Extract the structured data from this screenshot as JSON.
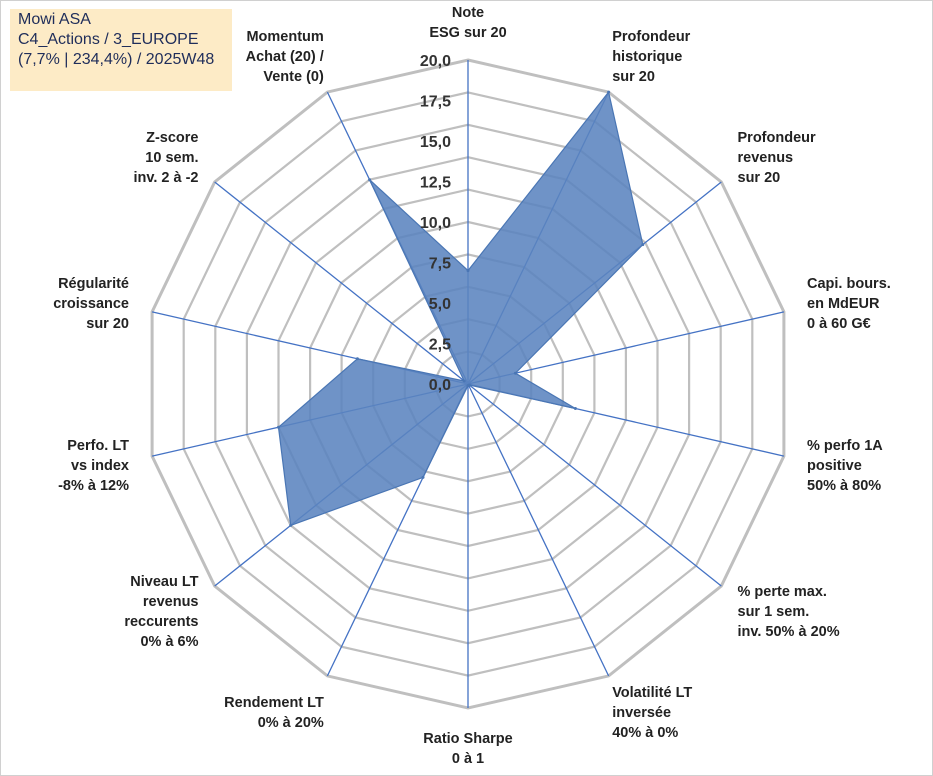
{
  "info": {
    "line1": "Mowi ASA",
    "line2": "C4_Actions / 3_EUROPE",
    "line3": "(7,7% | 234,4%) / 2025W48"
  },
  "chart_data": {
    "type": "radar",
    "rmin": 0,
    "rmax": 20,
    "ticks": [
      "0,0",
      "2,5",
      "5,0",
      "7,5",
      "10,0",
      "12,5",
      "15,0",
      "17,5",
      "20,0"
    ],
    "tick_values": [
      0,
      2.5,
      5,
      7.5,
      10,
      12.5,
      15,
      17.5,
      20
    ],
    "grid_levels": [
      2,
      4,
      6,
      8,
      10,
      12,
      14,
      16,
      18,
      20
    ],
    "colors": {
      "fill": "#5b84bf",
      "stroke": "#4a76b4",
      "spoke": "#4472c4",
      "grid": "#bfbfbf"
    },
    "axes": [
      {
        "lines": [
          "Note",
          "ESG sur 20"
        ],
        "value": 7.0
      },
      {
        "lines": [
          "Profondeur",
          "historique",
          "sur 20"
        ],
        "value": 20.0
      },
      {
        "lines": [
          "Profondeur",
          "revenus",
          "sur 20"
        ],
        "value": 13.8
      },
      {
        "lines": [
          "Capi. bours.",
          "en MdEUR",
          "0 à 60 G€"
        ],
        "value": 3.0
      },
      {
        "lines": [
          "% perfo 1A",
          "positive",
          "50% à 80%"
        ],
        "value": 6.8
      },
      {
        "lines": [
          "% perte max.",
          "sur 1 sem.",
          "inv. 50% à 20%"
        ],
        "value": 0.1
      },
      {
        "lines": [
          "Volatilité LT",
          "inversée",
          "40% à 0%"
        ],
        "value": 0.1
      },
      {
        "lines": [
          "Ratio Sharpe",
          "0 à 1"
        ],
        "value": 0.1
      },
      {
        "lines": [
          "Rendement LT",
          "0% à 20%"
        ],
        "value": 6.4
      },
      {
        "lines": [
          "Niveau LT",
          "revenus",
          "reccurents",
          "0% à 6%"
        ],
        "value": 14.0
      },
      {
        "lines": [
          "Perfo. LT",
          "vs index",
          "-8% à 12%"
        ],
        "value": 12.0
      },
      {
        "lines": [
          "Régularité",
          "croissance",
          "sur 20"
        ],
        "value": 7.0
      },
      {
        "lines": [
          "Z-score",
          "10 sem.",
          "inv. 2 à -2"
        ],
        "value": 0.3
      },
      {
        "lines": [
          "Momentum",
          "Achat (20) /",
          "Vente (0)"
        ],
        "value": 14.0
      }
    ]
  }
}
